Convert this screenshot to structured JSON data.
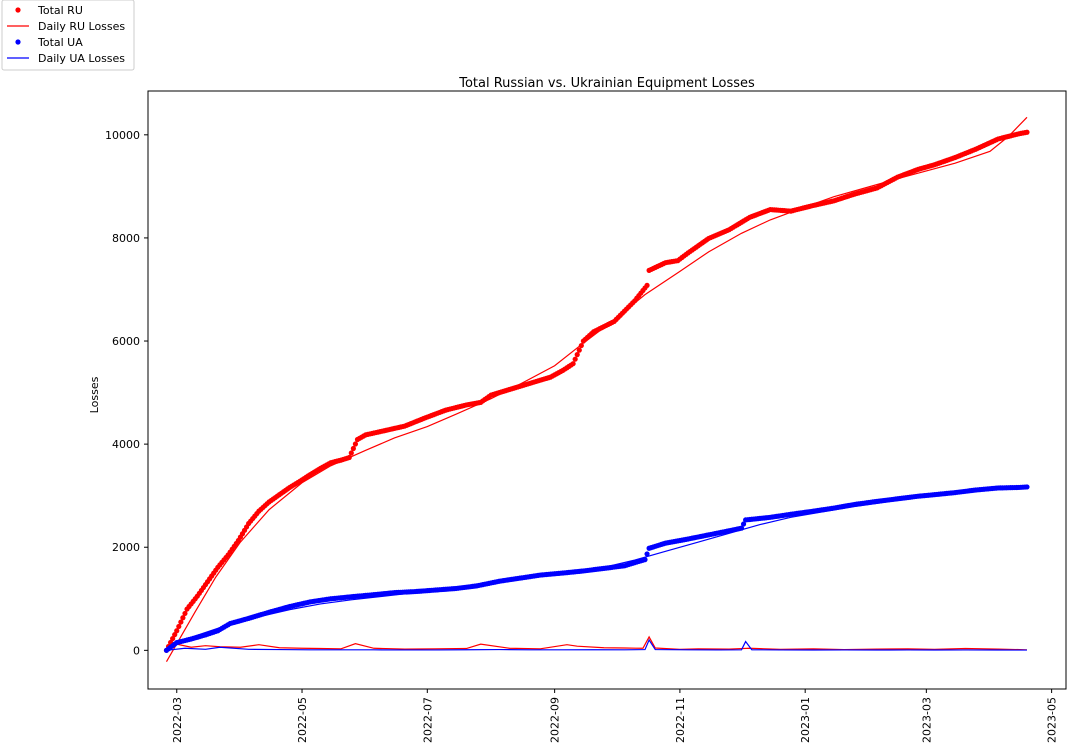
{
  "chart_data": {
    "type": "line",
    "title": "Total Russian vs. Ukrainian Equipment Losses",
    "xlabel": "",
    "ylabel": "Losses",
    "xlim": [
      "2022-02-15",
      "2023-05-08"
    ],
    "ylim": [
      -750,
      10850
    ],
    "x_ticks": [
      "2022-03",
      "2022-05",
      "2022-07",
      "2022-09",
      "2022-11",
      "2023-01",
      "2023-03",
      "2023-05"
    ],
    "y_ticks": [
      0,
      2000,
      4000,
      6000,
      8000,
      10000
    ],
    "grid": false,
    "legend": {
      "placement": "top-left",
      "entries": [
        {
          "label": "Total RU",
          "marker": "dot",
          "color": "#ff0000"
        },
        {
          "label": " Daily RU Losses",
          "marker": "line",
          "color": "#ff0000"
        },
        {
          "label": "Total UA",
          "marker": "dot",
          "color": "#0000ff"
        },
        {
          "label": "Daily UA Losses",
          "marker": "line",
          "color": "#0000ff"
        }
      ]
    },
    "series": [
      {
        "name": "Total RU",
        "style": "scatter",
        "color": "#ff0000",
        "x": [
          "2022-02-24",
          "2022-03-01",
          "2022-03-06",
          "2022-03-11",
          "2022-03-16",
          "2022-03-21",
          "2022-03-26",
          "2022-03-31",
          "2022-04-05",
          "2022-04-10",
          "2022-04-15",
          "2022-04-20",
          "2022-04-25",
          "2022-04-30",
          "2022-05-05",
          "2022-05-10",
          "2022-05-15",
          "2022-05-20",
          "2022-05-24",
          "2022-05-28",
          "2022-06-01",
          "2022-06-10",
          "2022-06-20",
          "2022-06-30",
          "2022-07-10",
          "2022-07-20",
          "2022-07-27",
          "2022-08-01",
          "2022-08-10",
          "2022-08-20",
          "2022-08-30",
          "2022-09-05",
          "2022-09-10",
          "2022-09-15",
          "2022-09-20",
          "2022-09-30",
          "2022-10-10",
          "2022-10-16",
          "2022-10-17",
          "2022-10-25",
          "2022-10-31",
          "2022-11-05",
          "2022-11-15",
          "2022-11-25",
          "2022-12-05",
          "2022-12-15",
          "2022-12-25",
          "2023-01-05",
          "2023-01-15",
          "2023-01-25",
          "2023-02-05",
          "2023-02-15",
          "2023-02-25",
          "2023-03-05",
          "2023-03-15",
          "2023-03-25",
          "2023-04-05",
          "2023-04-15",
          "2023-04-19"
        ],
        "y": [
          0,
          380,
          800,
          1050,
          1330,
          1610,
          1850,
          2130,
          2460,
          2700,
          2880,
          3020,
          3160,
          3280,
          3410,
          3530,
          3640,
          3690,
          3740,
          4090,
          4180,
          4260,
          4350,
          4510,
          4660,
          4760,
          4810,
          4950,
          5060,
          5180,
          5300,
          5430,
          5560,
          6000,
          6180,
          6380,
          6780,
          7080,
          7370,
          7520,
          7560,
          7710,
          7990,
          8160,
          8400,
          8550,
          8520,
          8630,
          8720,
          8850,
          8970,
          9180,
          9330,
          9420,
          9560,
          9720,
          9920,
          10020,
          10050
        ]
      },
      {
        "name": " Daily RU Losses",
        "style": "line",
        "color": "#ff0000",
        "x": [
          "2022-02-24",
          "2022-03-10",
          "2022-03-20",
          "2022-04-01",
          "2022-04-15",
          "2022-05-01",
          "2022-05-15",
          "2022-06-01",
          "2022-06-15",
          "2022-07-01",
          "2022-07-15",
          "2022-08-01",
          "2022-08-15",
          "2022-09-01",
          "2022-09-15",
          "2022-10-01",
          "2022-10-15",
          "2022-11-01",
          "2022-11-15",
          "2022-12-01",
          "2022-12-15",
          "2023-01-01",
          "2023-01-15",
          "2023-02-01",
          "2023-02-15",
          "2023-03-01",
          "2023-03-15",
          "2023-04-01",
          "2023-04-10",
          "2023-04-19"
        ],
        "y": [
          -220,
          750,
          1420,
          2100,
          2730,
          3250,
          3580,
          3880,
          4120,
          4340,
          4580,
          4880,
          5160,
          5520,
          5960,
          6440,
          6900,
          7350,
          7730,
          8090,
          8350,
          8600,
          8800,
          8990,
          9150,
          9300,
          9450,
          9680,
          9970,
          10340
        ]
      },
      {
        "name": "Daily RU Losses (daily)",
        "style": "line",
        "color": "#ff0000",
        "x": [
          "2022-02-24",
          "2022-03-01",
          "2022-03-08",
          "2022-03-15",
          "2022-03-22",
          "2022-04-01",
          "2022-04-10",
          "2022-04-20",
          "2022-05-01",
          "2022-05-10",
          "2022-05-20",
          "2022-05-27",
          "2022-06-05",
          "2022-06-20",
          "2022-07-05",
          "2022-07-20",
          "2022-07-27",
          "2022-08-10",
          "2022-08-25",
          "2022-09-07",
          "2022-09-12",
          "2022-09-25",
          "2022-10-05",
          "2022-10-14",
          "2022-10-17",
          "2022-10-20",
          "2022-11-01",
          "2022-11-10",
          "2022-11-25",
          "2022-12-05",
          "2022-12-20",
          "2023-01-05",
          "2023-01-20",
          "2023-02-05",
          "2023-02-20",
          "2023-03-05",
          "2023-03-20",
          "2023-04-05",
          "2023-04-19"
        ],
        "y": [
          0,
          120,
          60,
          90,
          70,
          60,
          110,
          50,
          40,
          35,
          30,
          130,
          40,
          25,
          30,
          35,
          120,
          40,
          30,
          110,
          80,
          50,
          45,
          40,
          260,
          45,
          20,
          30,
          25,
          40,
          20,
          30,
          15,
          25,
          30,
          20,
          35,
          25,
          10
        ]
      },
      {
        "name": "Total UA",
        "style": "scatter",
        "color": "#0000ff",
        "x": [
          "2022-02-24",
          "2022-03-01",
          "2022-03-08",
          "2022-03-15",
          "2022-03-21",
          "2022-03-27",
          "2022-04-05",
          "2022-04-15",
          "2022-04-25",
          "2022-05-05",
          "2022-05-15",
          "2022-05-25",
          "2022-06-05",
          "2022-06-15",
          "2022-06-25",
          "2022-07-05",
          "2022-07-15",
          "2022-07-25",
          "2022-08-05",
          "2022-08-15",
          "2022-08-25",
          "2022-09-05",
          "2022-09-15",
          "2022-09-25",
          "2022-10-05",
          "2022-10-15",
          "2022-10-17",
          "2022-10-25",
          "2022-11-05",
          "2022-11-15",
          "2022-11-25",
          "2022-12-01",
          "2022-12-03",
          "2022-12-15",
          "2022-12-25",
          "2023-01-05",
          "2023-01-15",
          "2023-01-25",
          "2023-02-05",
          "2023-02-15",
          "2023-02-25",
          "2023-03-05",
          "2023-03-15",
          "2023-03-25",
          "2023-04-05",
          "2023-04-15",
          "2023-04-19"
        ],
        "y": [
          0,
          150,
          220,
          300,
          380,
          520,
          620,
          740,
          850,
          940,
          1000,
          1040,
          1080,
          1120,
          1140,
          1170,
          1200,
          1250,
          1340,
          1400,
          1460,
          1500,
          1540,
          1590,
          1640,
          1760,
          1980,
          2080,
          2160,
          2240,
          2320,
          2370,
          2530,
          2580,
          2640,
          2700,
          2760,
          2830,
          2890,
          2940,
          2990,
          3020,
          3060,
          3110,
          3150,
          3160,
          3170
        ]
      },
      {
        "name": "Daily UA Losses",
        "style": "line",
        "color": "#0000ff",
        "x": [
          "2022-02-24",
          "2022-03-10",
          "2022-03-25",
          "2022-04-10",
          "2022-04-25",
          "2022-05-10",
          "2022-05-25",
          "2022-06-10",
          "2022-06-25",
          "2022-07-10",
          "2022-07-25",
          "2022-08-10",
          "2022-08-25",
          "2022-09-10",
          "2022-09-25",
          "2022-10-10",
          "2022-10-25",
          "2022-11-10",
          "2022-11-25",
          "2022-12-10",
          "2022-12-25",
          "2023-01-10",
          "2023-01-25",
          "2023-02-10",
          "2023-02-25",
          "2023-03-10",
          "2023-03-25",
          "2023-04-10",
          "2023-04-19"
        ],
        "y": [
          20,
          280,
          480,
          650,
          790,
          900,
          980,
          1050,
          1120,
          1190,
          1270,
          1360,
          1440,
          1520,
          1610,
          1750,
          1920,
          2100,
          2270,
          2440,
          2580,
          2690,
          2790,
          2880,
          2960,
          3030,
          3090,
          3140,
          3170
        ]
      },
      {
        "name": "Daily UA Losses (daily)",
        "style": "line",
        "color": "#0000ff",
        "x": [
          "2022-02-24",
          "2022-03-05",
          "2022-03-15",
          "2022-03-22",
          "2022-04-05",
          "2022-04-20",
          "2022-05-05",
          "2022-05-20",
          "2022-06-05",
          "2022-06-20",
          "2022-07-05",
          "2022-07-20",
          "2022-08-05",
          "2022-08-20",
          "2022-09-05",
          "2022-09-20",
          "2022-10-05",
          "2022-10-15",
          "2022-10-17",
          "2022-10-20",
          "2022-11-05",
          "2022-11-20",
          "2022-12-01",
          "2022-12-03",
          "2022-12-06",
          "2022-12-20",
          "2023-01-05",
          "2023-01-20",
          "2023-02-05",
          "2023-02-20",
          "2023-03-05",
          "2023-03-20",
          "2023-04-05",
          "2023-04-19"
        ],
        "y": [
          0,
          40,
          20,
          60,
          20,
          15,
          10,
          10,
          10,
          8,
          8,
          12,
          15,
          10,
          10,
          12,
          10,
          15,
          200,
          15,
          10,
          8,
          10,
          170,
          12,
          8,
          6,
          8,
          6,
          8,
          6,
          8,
          6,
          5
        ]
      }
    ]
  }
}
